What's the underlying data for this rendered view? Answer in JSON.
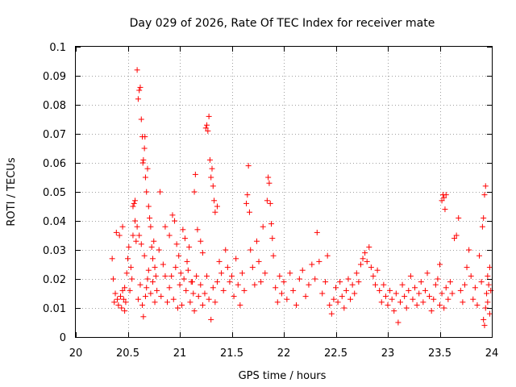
{
  "chart_data": {
    "type": "scatter",
    "title": "Day 029 of 2026, Rate Of TEC Index for receiver mate",
    "xlabel": "GPS time / hours",
    "ylabel": "ROTI / TECUs",
    "xlim": [
      20,
      24
    ],
    "ylim": [
      0,
      0.1
    ],
    "x_ticks": [
      20,
      20.5,
      21,
      21.5,
      22,
      22.5,
      23,
      23.5,
      24
    ],
    "x_tick_labels": [
      "20",
      "20.5",
      "21",
      "21.5",
      "22",
      "22.5",
      "23",
      "23.5",
      "24"
    ],
    "y_ticks": [
      0,
      0.01,
      0.02,
      0.03,
      0.04,
      0.05,
      0.06,
      0.07,
      0.08,
      0.09,
      0.1
    ],
    "y_tick_labels": [
      "0",
      "0.01",
      "0.02",
      "0.03",
      "0.04",
      "0.05",
      "0.06",
      "0.07",
      "0.08",
      "0.09",
      "0.1"
    ],
    "grid": true,
    "marker": "plus",
    "color": "#ff0000",
    "series": [
      {
        "name": "ROTI",
        "points": [
          [
            20.35,
            0.027
          ],
          [
            20.36,
            0.02
          ],
          [
            20.37,
            0.012
          ],
          [
            20.38,
            0.015
          ],
          [
            20.39,
            0.036
          ],
          [
            20.4,
            0.013
          ],
          [
            20.41,
            0.011
          ],
          [
            20.42,
            0.035
          ],
          [
            20.43,
            0.014
          ],
          [
            20.44,
            0.01
          ],
          [
            20.45,
            0.038
          ],
          [
            20.46,
            0.013
          ],
          [
            20.47,
            0.017
          ],
          [
            20.48,
            0.012
          ],
          [
            20.49,
            0.022
          ],
          [
            20.5,
            0.027
          ],
          [
            20.51,
            0.031
          ],
          [
            20.52,
            0.016
          ],
          [
            20.53,
            0.024
          ],
          [
            20.54,
            0.02
          ],
          [
            20.55,
            0.035
          ],
          [
            20.56,
            0.046
          ],
          [
            20.57,
            0.047
          ],
          [
            20.58,
            0.033
          ],
          [
            20.59,
            0.092
          ],
          [
            20.6,
            0.082
          ],
          [
            20.61,
            0.085
          ],
          [
            20.62,
            0.086
          ],
          [
            20.63,
            0.075
          ],
          [
            20.64,
            0.069
          ],
          [
            20.645,
            0.06
          ],
          [
            20.65,
            0.061
          ],
          [
            20.66,
            0.065
          ],
          [
            20.665,
            0.069
          ],
          [
            20.67,
            0.055
          ],
          [
            20.68,
            0.05
          ],
          [
            20.69,
            0.058
          ],
          [
            20.7,
            0.045
          ],
          [
            20.71,
            0.041
          ],
          [
            20.72,
            0.038
          ],
          [
            20.73,
            0.031
          ],
          [
            20.74,
            0.027
          ],
          [
            20.75,
            0.033
          ],
          [
            20.76,
            0.024
          ],
          [
            20.77,
            0.021
          ],
          [
            20.6,
            0.013
          ],
          [
            20.62,
            0.018
          ],
          [
            20.64,
            0.011
          ],
          [
            20.66,
            0.028
          ],
          [
            20.68,
            0.017
          ],
          [
            20.7,
            0.023
          ],
          [
            20.72,
            0.015
          ],
          [
            20.74,
            0.019
          ],
          [
            20.76,
            0.012
          ],
          [
            20.78,
            0.016
          ],
          [
            20.8,
            0.03
          ],
          [
            20.82,
            0.014
          ],
          [
            20.84,
            0.025
          ],
          [
            20.86,
            0.021
          ],
          [
            20.88,
            0.012
          ],
          [
            20.81,
            0.05
          ],
          [
            20.86,
            0.038
          ],
          [
            20.9,
            0.035
          ],
          [
            20.93,
            0.042
          ],
          [
            20.95,
            0.04
          ],
          [
            20.97,
            0.032
          ],
          [
            20.99,
            0.028
          ],
          [
            21.01,
            0.022
          ],
          [
            21.03,
            0.037
          ],
          [
            21.05,
            0.034
          ],
          [
            21.07,
            0.026
          ],
          [
            21.09,
            0.031
          ],
          [
            21.11,
            0.019
          ],
          [
            21.13,
            0.015
          ],
          [
            21.15,
            0.056
          ],
          [
            20.9,
            0.017
          ],
          [
            20.92,
            0.021
          ],
          [
            20.94,
            0.013
          ],
          [
            20.96,
            0.024
          ],
          [
            20.98,
            0.01
          ],
          [
            21.0,
            0.018
          ],
          [
            21.02,
            0.011
          ],
          [
            21.04,
            0.02
          ],
          [
            21.06,
            0.016
          ],
          [
            21.08,
            0.023
          ],
          [
            21.1,
            0.012
          ],
          [
            21.12,
            0.019
          ],
          [
            21.14,
            0.009
          ],
          [
            21.16,
            0.021
          ],
          [
            21.18,
            0.014
          ],
          [
            21.14,
            0.05
          ],
          [
            21.17,
            0.037
          ],
          [
            21.2,
            0.033
          ],
          [
            21.22,
            0.029
          ],
          [
            21.25,
            0.072
          ],
          [
            21.26,
            0.073
          ],
          [
            21.27,
            0.071
          ],
          [
            21.28,
            0.076
          ],
          [
            21.29,
            0.061
          ],
          [
            21.3,
            0.055
          ],
          [
            21.31,
            0.058
          ],
          [
            21.32,
            0.052
          ],
          [
            21.33,
            0.047
          ],
          [
            21.34,
            0.043
          ],
          [
            21.36,
            0.045
          ],
          [
            21.2,
            0.018
          ],
          [
            21.22,
            0.011
          ],
          [
            21.24,
            0.015
          ],
          [
            21.26,
            0.021
          ],
          [
            21.28,
            0.013
          ],
          [
            21.3,
            0.006
          ],
          [
            21.32,
            0.017
          ],
          [
            21.34,
            0.012
          ],
          [
            21.36,
            0.019
          ],
          [
            21.38,
            0.026
          ],
          [
            21.4,
            0.022
          ],
          [
            21.42,
            0.016
          ],
          [
            21.44,
            0.03
          ],
          [
            21.46,
            0.024
          ],
          [
            21.48,
            0.019
          ],
          [
            21.5,
            0.021
          ],
          [
            21.52,
            0.014
          ],
          [
            21.54,
            0.027
          ],
          [
            21.56,
            0.018
          ],
          [
            21.58,
            0.011
          ],
          [
            21.6,
            0.022
          ],
          [
            21.62,
            0.016
          ],
          [
            21.64,
            0.046
          ],
          [
            21.65,
            0.049
          ],
          [
            21.66,
            0.059
          ],
          [
            21.67,
            0.043
          ],
          [
            21.68,
            0.03
          ],
          [
            21.7,
            0.024
          ],
          [
            21.72,
            0.018
          ],
          [
            21.74,
            0.033
          ],
          [
            21.76,
            0.026
          ],
          [
            21.78,
            0.019
          ],
          [
            21.8,
            0.038
          ],
          [
            21.82,
            0.022
          ],
          [
            21.84,
            0.047
          ],
          [
            21.85,
            0.055
          ],
          [
            21.86,
            0.053
          ],
          [
            21.87,
            0.046
          ],
          [
            21.88,
            0.039
          ],
          [
            21.89,
            0.034
          ],
          [
            21.9,
            0.028
          ],
          [
            21.92,
            0.017
          ],
          [
            21.94,
            0.012
          ],
          [
            21.96,
            0.021
          ],
          [
            21.98,
            0.015
          ],
          [
            22.0,
            0.019
          ],
          [
            22.03,
            0.013
          ],
          [
            22.06,
            0.022
          ],
          [
            22.09,
            0.016
          ],
          [
            22.12,
            0.011
          ],
          [
            22.15,
            0.02
          ],
          [
            22.18,
            0.023
          ],
          [
            22.21,
            0.014
          ],
          [
            22.24,
            0.018
          ],
          [
            22.27,
            0.025
          ],
          [
            22.3,
            0.02
          ],
          [
            22.32,
            0.036
          ],
          [
            22.34,
            0.026
          ],
          [
            22.37,
            0.015
          ],
          [
            22.4,
            0.019
          ],
          [
            22.42,
            0.028
          ],
          [
            22.44,
            0.011
          ],
          [
            22.46,
            0.008
          ],
          [
            22.48,
            0.013
          ],
          [
            22.5,
            0.017
          ],
          [
            22.52,
            0.012
          ],
          [
            22.54,
            0.019
          ],
          [
            22.56,
            0.014
          ],
          [
            22.58,
            0.01
          ],
          [
            22.6,
            0.016
          ],
          [
            22.62,
            0.02
          ],
          [
            22.64,
            0.013
          ],
          [
            22.66,
            0.018
          ],
          [
            22.68,
            0.015
          ],
          [
            22.7,
            0.022
          ],
          [
            22.72,
            0.019
          ],
          [
            22.74,
            0.025
          ],
          [
            22.76,
            0.027
          ],
          [
            22.78,
            0.029
          ],
          [
            22.8,
            0.026
          ],
          [
            22.82,
            0.031
          ],
          [
            22.84,
            0.024
          ],
          [
            22.86,
            0.021
          ],
          [
            22.88,
            0.018
          ],
          [
            22.9,
            0.023
          ],
          [
            22.92,
            0.016
          ],
          [
            22.94,
            0.012
          ],
          [
            22.96,
            0.018
          ],
          [
            22.98,
            0.014
          ],
          [
            23.0,
            0.011
          ],
          [
            23.02,
            0.016
          ],
          [
            23.04,
            0.013
          ],
          [
            23.06,
            0.009
          ],
          [
            23.08,
            0.015
          ],
          [
            23.1,
            0.005
          ],
          [
            23.12,
            0.012
          ],
          [
            23.14,
            0.018
          ],
          [
            23.16,
            0.014
          ],
          [
            23.18,
            0.01
          ],
          [
            23.2,
            0.016
          ],
          [
            23.22,
            0.021
          ],
          [
            23.24,
            0.013
          ],
          [
            23.26,
            0.017
          ],
          [
            23.28,
            0.011
          ],
          [
            23.3,
            0.015
          ],
          [
            23.32,
            0.019
          ],
          [
            23.34,
            0.012
          ],
          [
            23.36,
            0.016
          ],
          [
            23.38,
            0.022
          ],
          [
            23.4,
            0.014
          ],
          [
            23.42,
            0.009
          ],
          [
            23.44,
            0.013
          ],
          [
            23.46,
            0.018
          ],
          [
            23.48,
            0.02
          ],
          [
            23.5,
            0.025
          ],
          [
            23.52,
            0.047
          ],
          [
            23.53,
            0.049
          ],
          [
            23.54,
            0.048
          ],
          [
            23.55,
            0.044
          ],
          [
            23.56,
            0.049
          ],
          [
            23.5,
            0.011
          ],
          [
            23.52,
            0.015
          ],
          [
            23.54,
            0.01
          ],
          [
            23.56,
            0.017
          ],
          [
            23.58,
            0.013
          ],
          [
            23.6,
            0.019
          ],
          [
            23.62,
            0.015
          ],
          [
            23.64,
            0.034
          ],
          [
            23.66,
            0.035
          ],
          [
            23.68,
            0.041
          ],
          [
            23.7,
            0.016
          ],
          [
            23.72,
            0.012
          ],
          [
            23.74,
            0.018
          ],
          [
            23.76,
            0.024
          ],
          [
            23.78,
            0.03
          ],
          [
            23.8,
            0.021
          ],
          [
            23.82,
            0.013
          ],
          [
            23.84,
            0.017
          ],
          [
            23.86,
            0.011
          ],
          [
            23.88,
            0.028
          ],
          [
            23.9,
            0.019
          ],
          [
            23.91,
            0.038
          ],
          [
            23.92,
            0.041
          ],
          [
            23.93,
            0.049
          ],
          [
            23.94,
            0.052
          ],
          [
            23.95,
            0.015
          ],
          [
            23.96,
            0.021
          ],
          [
            23.97,
            0.018
          ],
          [
            23.98,
            0.024
          ],
          [
            23.99,
            0.016
          ],
          [
            23.92,
            0.006
          ],
          [
            23.93,
            0.004
          ],
          [
            23.94,
            0.01
          ],
          [
            23.96,
            0.012
          ],
          [
            23.98,
            0.008
          ],
          [
            20.55,
            0.045
          ],
          [
            20.57,
            0.04
          ],
          [
            20.59,
            0.038
          ],
          [
            20.61,
            0.035
          ],
          [
            20.63,
            0.032
          ],
          [
            20.45,
            0.016
          ],
          [
            20.47,
            0.009
          ],
          [
            20.65,
            0.007
          ],
          [
            20.67,
            0.014
          ],
          [
            20.69,
            0.02
          ]
        ]
      }
    ]
  }
}
